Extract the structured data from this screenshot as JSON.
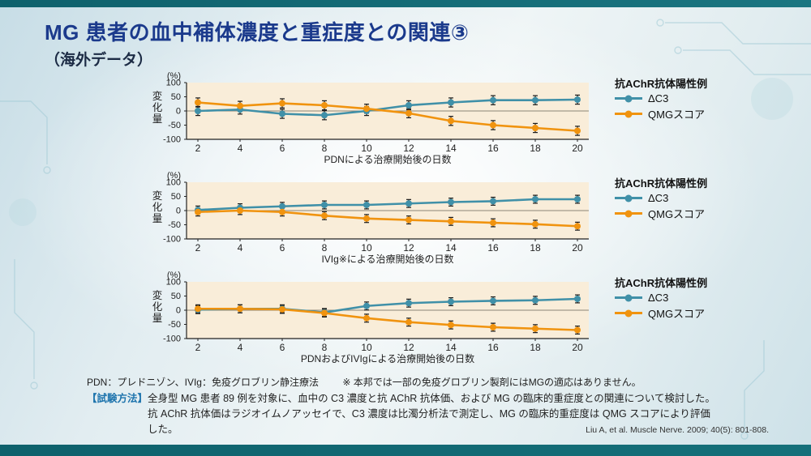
{
  "slide": {
    "title": "MG 患者の血中補体濃度と重症度との関連③",
    "subtitle": "（海外データ）"
  },
  "colors": {
    "title": "#1b3a8c",
    "subtitle": "#1c2b45",
    "c3_series": "#4090a8",
    "qmg_series": "#f0930f",
    "plot_bg": "#f9edd9",
    "method_label": "#1e74ad",
    "band": "#0e616c",
    "error_bar": "#1c1c1c"
  },
  "legend": {
    "title": "抗AChR抗体陽性例",
    "items": [
      {
        "label": "ΔC3"
      },
      {
        "label": "QMGスコア"
      }
    ]
  },
  "chart_data": [
    {
      "type": "line",
      "x": [
        2,
        4,
        6,
        8,
        10,
        12,
        14,
        16,
        18,
        20
      ],
      "series": [
        {
          "name": "ΔC3",
          "values": [
            0,
            5,
            -10,
            -15,
            0,
            20,
            30,
            38,
            38,
            40
          ],
          "error": 16
        },
        {
          "name": "QMGスコア",
          "values": [
            30,
            18,
            27,
            20,
            8,
            -8,
            -35,
            -50,
            -60,
            -70
          ],
          "error": 16
        }
      ],
      "xlabel": "PDNによる治療開始後の日数",
      "ylabel": "変化量",
      "yunit": "(%)",
      "ylim": [
        -100,
        100
      ],
      "yticks": [
        100,
        50,
        0,
        -50,
        -100
      ],
      "grid": false,
      "legend_position": "right"
    },
    {
      "type": "line",
      "x": [
        2,
        4,
        6,
        8,
        10,
        12,
        14,
        16,
        18,
        20
      ],
      "series": [
        {
          "name": "ΔC3",
          "values": [
            2,
            10,
            15,
            20,
            20,
            25,
            30,
            33,
            40,
            40
          ],
          "error": 14
        },
        {
          "name": "QMGスコア",
          "values": [
            -5,
            0,
            -5,
            -18,
            -28,
            -33,
            -38,
            -43,
            -48,
            -55
          ],
          "error": 14
        }
      ],
      "xlabel": "IVIg※による治療開始後の日数",
      "ylabel": "変化量",
      "yunit": "(%)",
      "ylim": [
        -100,
        100
      ],
      "yticks": [
        100,
        50,
        0,
        -50,
        -100
      ],
      "grid": false,
      "legend_position": "right"
    },
    {
      "type": "line",
      "x": [
        2,
        4,
        6,
        8,
        10,
        12,
        14,
        16,
        18,
        20
      ],
      "series": [
        {
          "name": "ΔC3",
          "values": [
            2,
            5,
            5,
            -8,
            15,
            25,
            30,
            33,
            35,
            40
          ],
          "error": 14
        },
        {
          "name": "QMGスコア",
          "values": [
            5,
            5,
            3,
            -10,
            -28,
            -42,
            -52,
            -60,
            -65,
            -70
          ],
          "error": 14
        }
      ],
      "xlabel": "PDNおよびIVIgによる治療開始後の日数",
      "ylabel": "変化量",
      "yunit": "(%)",
      "ylim": [
        -100,
        100
      ],
      "yticks": [
        100,
        50,
        0,
        -50,
        -100
      ],
      "grid": false,
      "legend_position": "right"
    }
  ],
  "footer": {
    "abbrev_note": "PDN：プレドニゾン、IVIg：免疫グロブリン静注療法",
    "approval_note": "※ 本邦では一部の免疫グロブリン製剤にはMGの適応はありません。",
    "method_label": "【試験方法】",
    "method_text": "全身型 MG 患者 89 例を対象に、血中の C3 濃度と抗 AChR 抗体価、および MG の臨床的重症度との関連について検討した。抗 AChR 抗体価はラジオイムノアッセイで、C3 濃度は比濁分析法で測定し、MG の臨床的重症度は QMG スコアにより評価した。",
    "citation": "Liu A, et al. Muscle Nerve. 2009; 40(5): 801-808."
  }
}
